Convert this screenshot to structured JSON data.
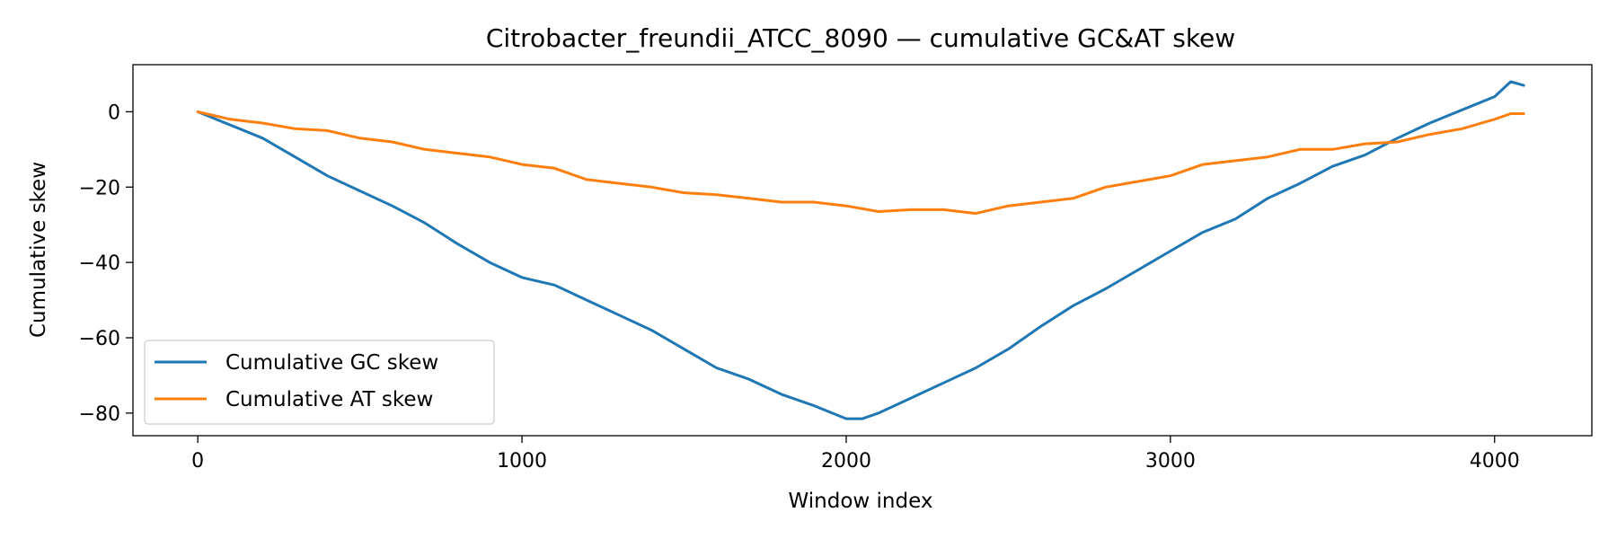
{
  "chart_data": {
    "type": "line",
    "title": "Citrobacter_freundii_ATCC_8090 — cumulative GC&AT skew",
    "xlabel": "Window index",
    "ylabel": "Cumulative skew",
    "xlim": [
      -200,
      4300
    ],
    "ylim": [
      -86,
      12.5
    ],
    "xticks": [
      0,
      1000,
      2000,
      3000,
      4000
    ],
    "xtick_labels": [
      "0",
      "1000",
      "2000",
      "3000",
      "4000"
    ],
    "yticks": [
      0,
      -20,
      -40,
      -60,
      -80
    ],
    "ytick_labels": [
      "0",
      "−20",
      "−40",
      "−60",
      "−80"
    ],
    "grid": false,
    "legend_position": "lower-left",
    "series": [
      {
        "name": "Cumulative GC skew",
        "color": "#1f77b4",
        "x": [
          0,
          100,
          200,
          300,
          400,
          500,
          600,
          700,
          800,
          900,
          1000,
          1100,
          1200,
          1300,
          1400,
          1500,
          1600,
          1700,
          1800,
          1900,
          2000,
          2050,
          2100,
          2200,
          2300,
          2400,
          2500,
          2600,
          2700,
          2800,
          2900,
          3000,
          3100,
          3200,
          3300,
          3400,
          3500,
          3600,
          3700,
          3800,
          3900,
          4000,
          4050,
          4090
        ],
        "values": [
          0,
          -3.5,
          -7,
          -12,
          -17,
          -21,
          -25,
          -29.5,
          -35,
          -40,
          -44,
          -46,
          -50,
          -54,
          -58,
          -63,
          -68,
          -71,
          -75,
          -78,
          -81.5,
          -81.5,
          -80,
          -76,
          -72,
          -68,
          -63,
          -57,
          -51.5,
          -47,
          -42,
          -37,
          -32,
          -28.5,
          -23,
          -19,
          -14.5,
          -11.5,
          -7,
          -3,
          0.5,
          4,
          8,
          7
        ]
      },
      {
        "name": "Cumulative AT skew",
        "color": "#ff7f0e",
        "x": [
          0,
          100,
          200,
          300,
          400,
          500,
          600,
          700,
          800,
          900,
          1000,
          1100,
          1200,
          1300,
          1400,
          1500,
          1600,
          1700,
          1800,
          1900,
          2000,
          2100,
          2200,
          2300,
          2400,
          2500,
          2600,
          2700,
          2800,
          2900,
          3000,
          3100,
          3200,
          3300,
          3400,
          3500,
          3600,
          3700,
          3800,
          3900,
          4000,
          4050,
          4090
        ],
        "values": [
          0,
          -2,
          -3,
          -4.5,
          -5,
          -7,
          -8,
          -10,
          -11,
          -12,
          -14,
          -15,
          -18,
          -19,
          -20,
          -21.5,
          -22,
          -23,
          -24,
          -24,
          -25,
          -26.5,
          -26,
          -26,
          -27,
          -25,
          -24,
          -23,
          -20,
          -18.5,
          -17,
          -14,
          -13,
          -12,
          -10,
          -10,
          -8.5,
          -8,
          -6,
          -4.5,
          -2,
          -0.5,
          -0.5
        ]
      }
    ]
  }
}
